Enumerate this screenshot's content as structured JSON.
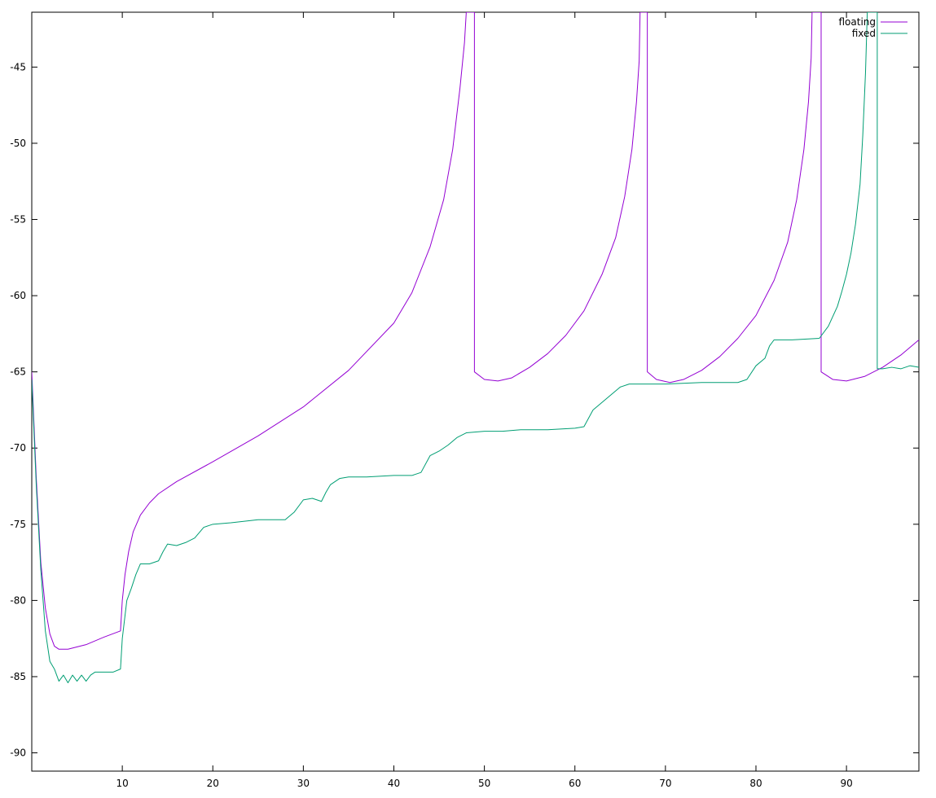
{
  "chart_data": {
    "type": "line",
    "title": "",
    "xlabel": "",
    "ylabel": "",
    "xlim": [
      0,
      98
    ],
    "ylim": [
      -91.2,
      -41.4
    ],
    "x_ticks": [
      10,
      20,
      30,
      40,
      50,
      60,
      70,
      80,
      90
    ],
    "y_ticks": [
      -45,
      -50,
      -55,
      -60,
      -65,
      -70,
      -75,
      -80,
      -85,
      -90
    ],
    "grid": false,
    "legend_position": "top-right",
    "series": [
      {
        "name": "floating",
        "color": "#9400d3",
        "points": [
          [
            0,
            -65.0
          ],
          [
            0.5,
            -72.0
          ],
          [
            1,
            -77.5
          ],
          [
            1.5,
            -80.5
          ],
          [
            2,
            -82.2
          ],
          [
            2.5,
            -83.0
          ],
          [
            3,
            -83.2
          ],
          [
            4,
            -83.2
          ],
          [
            6,
            -82.9
          ],
          [
            8,
            -82.4
          ],
          [
            9.8,
            -82.0
          ],
          [
            10,
            -80.0
          ],
          [
            10.3,
            -78.3
          ],
          [
            10.7,
            -76.8
          ],
          [
            11.2,
            -75.5
          ],
          [
            12,
            -74.4
          ],
          [
            13,
            -73.6
          ],
          [
            14,
            -73.0
          ],
          [
            16,
            -72.2
          ],
          [
            20,
            -70.9
          ],
          [
            25,
            -69.2
          ],
          [
            30,
            -67.3
          ],
          [
            35,
            -64.9
          ],
          [
            40,
            -61.8
          ],
          [
            42,
            -59.8
          ],
          [
            44,
            -56.8
          ],
          [
            45.5,
            -53.7
          ],
          [
            46.5,
            -50.4
          ],
          [
            47.3,
            -46.4
          ],
          [
            47.8,
            -43.4
          ],
          [
            48,
            -41.4
          ],
          [
            48.9,
            -41.4
          ],
          [
            48.9,
            -65.0
          ],
          [
            50,
            -65.5
          ],
          [
            51.5,
            -65.6
          ],
          [
            53,
            -65.4
          ],
          [
            55,
            -64.7
          ],
          [
            57,
            -63.8
          ],
          [
            59,
            -62.6
          ],
          [
            61,
            -61.0
          ],
          [
            63,
            -58.6
          ],
          [
            64.5,
            -56.2
          ],
          [
            65.5,
            -53.5
          ],
          [
            66.3,
            -50.4
          ],
          [
            66.8,
            -47.3
          ],
          [
            67.1,
            -44.6
          ],
          [
            67.2,
            -41.4
          ],
          [
            68.0,
            -41.4
          ],
          [
            68.0,
            -65.0
          ],
          [
            69,
            -65.5
          ],
          [
            70.5,
            -65.7
          ],
          [
            72,
            -65.5
          ],
          [
            74,
            -64.9
          ],
          [
            76,
            -64.0
          ],
          [
            78,
            -62.8
          ],
          [
            80,
            -61.3
          ],
          [
            82,
            -59.0
          ],
          [
            83.5,
            -56.5
          ],
          [
            84.5,
            -53.7
          ],
          [
            85.3,
            -50.4
          ],
          [
            85.8,
            -47.3
          ],
          [
            86.1,
            -44.4
          ],
          [
            86.2,
            -41.4
          ],
          [
            87.2,
            -41.4
          ],
          [
            87.2,
            -65.0
          ],
          [
            88.5,
            -65.5
          ],
          [
            90,
            -65.6
          ],
          [
            92,
            -65.3
          ],
          [
            94,
            -64.7
          ],
          [
            96,
            -63.9
          ],
          [
            98,
            -62.9
          ]
        ]
      },
      {
        "name": "fixed",
        "color": "#009e73",
        "points": [
          [
            0,
            -65.5
          ],
          [
            0.5,
            -72.5
          ],
          [
            1,
            -78.0
          ],
          [
            1.5,
            -82.0
          ],
          [
            2,
            -84.0
          ],
          [
            2.5,
            -84.5
          ],
          [
            3,
            -85.3
          ],
          [
            3.5,
            -84.9
          ],
          [
            4,
            -85.4
          ],
          [
            4.5,
            -84.9
          ],
          [
            5,
            -85.3
          ],
          [
            5.5,
            -84.9
          ],
          [
            6,
            -85.3
          ],
          [
            6.5,
            -84.9
          ],
          [
            7,
            -84.7
          ],
          [
            8,
            -84.7
          ],
          [
            9,
            -84.7
          ],
          [
            9.8,
            -84.5
          ],
          [
            10,
            -82.5
          ],
          [
            10.5,
            -80.0
          ],
          [
            11,
            -79.2
          ],
          [
            11.5,
            -78.3
          ],
          [
            12,
            -77.6
          ],
          [
            13,
            -77.6
          ],
          [
            14,
            -77.4
          ],
          [
            14.5,
            -76.8
          ],
          [
            15,
            -76.3
          ],
          [
            16,
            -76.4
          ],
          [
            17,
            -76.2
          ],
          [
            18,
            -75.9
          ],
          [
            19,
            -75.2
          ],
          [
            20,
            -75.0
          ],
          [
            22,
            -74.9
          ],
          [
            25,
            -74.7
          ],
          [
            28,
            -74.7
          ],
          [
            29,
            -74.2
          ],
          [
            30,
            -73.4
          ],
          [
            31,
            -73.3
          ],
          [
            32,
            -73.5
          ],
          [
            32.5,
            -72.9
          ],
          [
            33,
            -72.4
          ],
          [
            34,
            -72.0
          ],
          [
            35,
            -71.9
          ],
          [
            37,
            -71.9
          ],
          [
            40,
            -71.8
          ],
          [
            42,
            -71.8
          ],
          [
            43,
            -71.6
          ],
          [
            44,
            -70.5
          ],
          [
            45,
            -70.2
          ],
          [
            46,
            -69.8
          ],
          [
            47,
            -69.3
          ],
          [
            48,
            -69.0
          ],
          [
            50,
            -68.9
          ],
          [
            52,
            -68.9
          ],
          [
            54,
            -68.8
          ],
          [
            57,
            -68.8
          ],
          [
            60,
            -68.7
          ],
          [
            61,
            -68.6
          ],
          [
            62,
            -67.5
          ],
          [
            63,
            -67.0
          ],
          [
            64,
            -66.5
          ],
          [
            65,
            -66.0
          ],
          [
            66,
            -65.8
          ],
          [
            68,
            -65.8
          ],
          [
            70,
            -65.8
          ],
          [
            74,
            -65.7
          ],
          [
            78,
            -65.7
          ],
          [
            79,
            -65.5
          ],
          [
            80,
            -64.6
          ],
          [
            81,
            -64.1
          ],
          [
            81.5,
            -63.3
          ],
          [
            82,
            -62.9
          ],
          [
            84,
            -62.9
          ],
          [
            87,
            -62.8
          ],
          [
            88,
            -62.0
          ],
          [
            89,
            -60.7
          ],
          [
            89.5,
            -59.7
          ],
          [
            90,
            -58.6
          ],
          [
            90.5,
            -57.2
          ],
          [
            91,
            -55.3
          ],
          [
            91.5,
            -52.7
          ],
          [
            91.8,
            -49.5
          ],
          [
            92.1,
            -45.4
          ],
          [
            92.3,
            -41.4
          ],
          [
            93.4,
            -41.4
          ],
          [
            93.4,
            -64.8
          ],
          [
            94,
            -64.8
          ],
          [
            95,
            -64.7
          ],
          [
            96,
            -64.8
          ],
          [
            97,
            -64.6
          ],
          [
            98,
            -64.7
          ]
        ]
      }
    ]
  }
}
